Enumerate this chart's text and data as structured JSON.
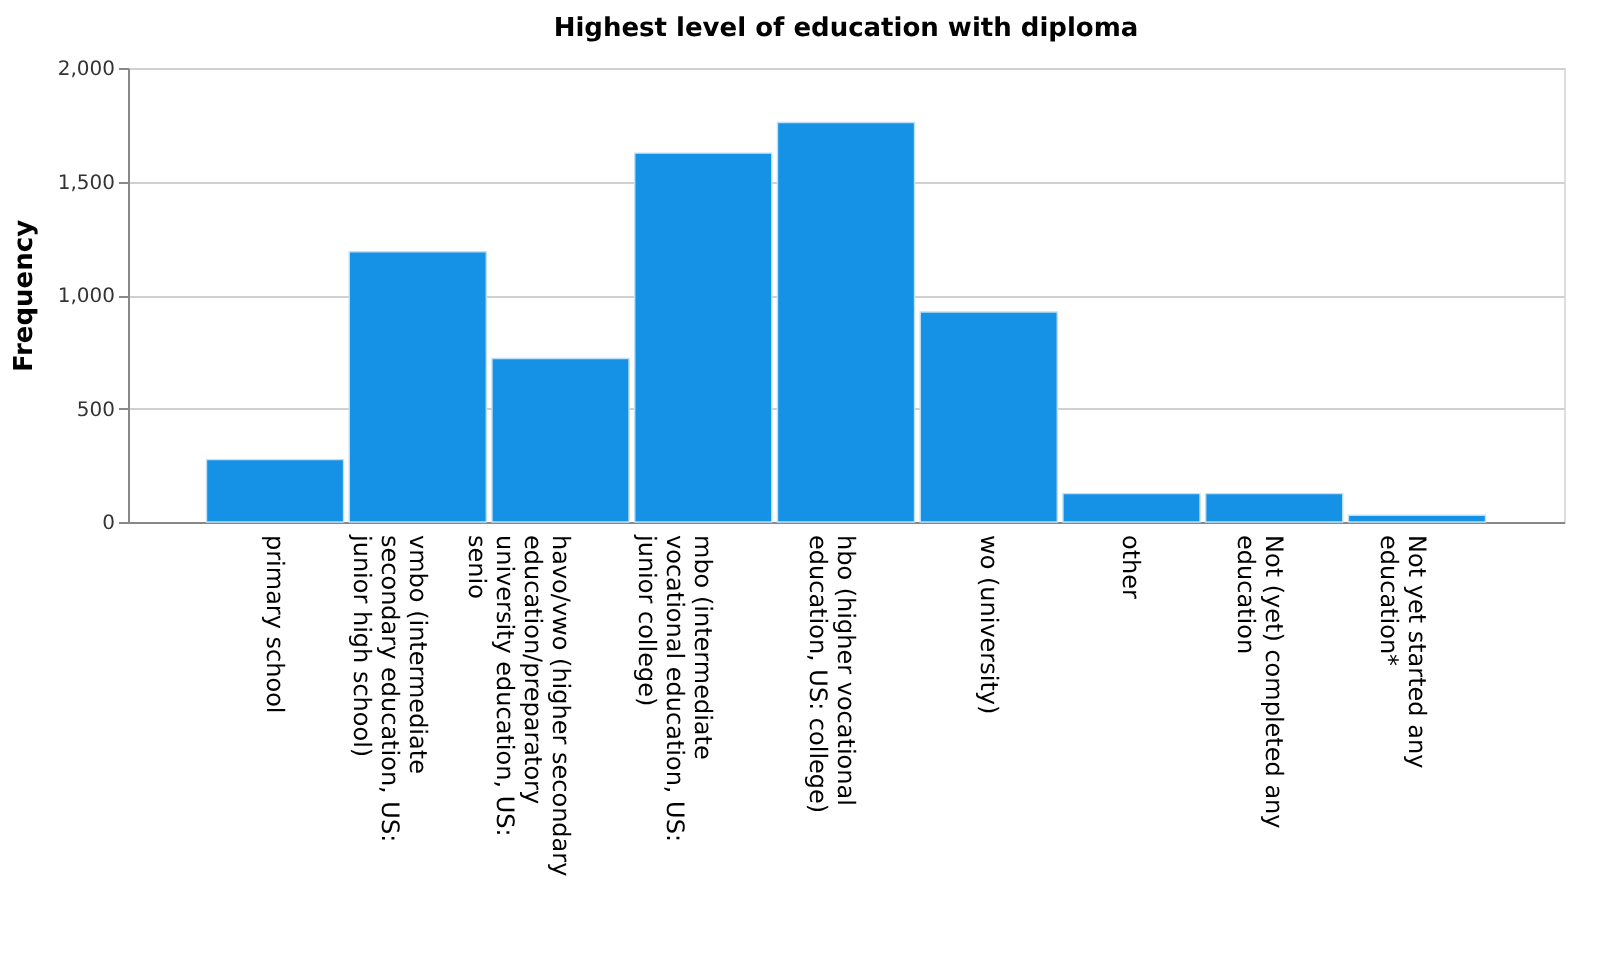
{
  "chart_data": {
    "type": "bar",
    "title": "Highest level of education with diploma",
    "ylabel": "Frequency",
    "categories": [
      "primary school",
      "vmbo (intermediate secondary education, US: junior high school)",
      "havo/vwo (higher secondary education/preparatory university education, US: senio",
      "mbo (intermediate vocational education, US: junior college)",
      "hbo (higher vocational education, US: college)",
      "wo (university)",
      "other",
      "Not (yet) completed any education",
      "Not yet started any education*"
    ],
    "values": [
      275,
      1190,
      720,
      1625,
      1760,
      925,
      125,
      125,
      30
    ],
    "color": "#1591e6",
    "ylim": [
      0,
      2000
    ],
    "yticks": [
      {
        "value": 0,
        "label": "0"
      },
      {
        "value": 500,
        "label": "500"
      },
      {
        "value": 1000,
        "label": "1,000"
      },
      {
        "value": 1500,
        "label": "1,500"
      },
      {
        "value": 2000,
        "label": "2,000"
      }
    ],
    "grid": "y"
  }
}
